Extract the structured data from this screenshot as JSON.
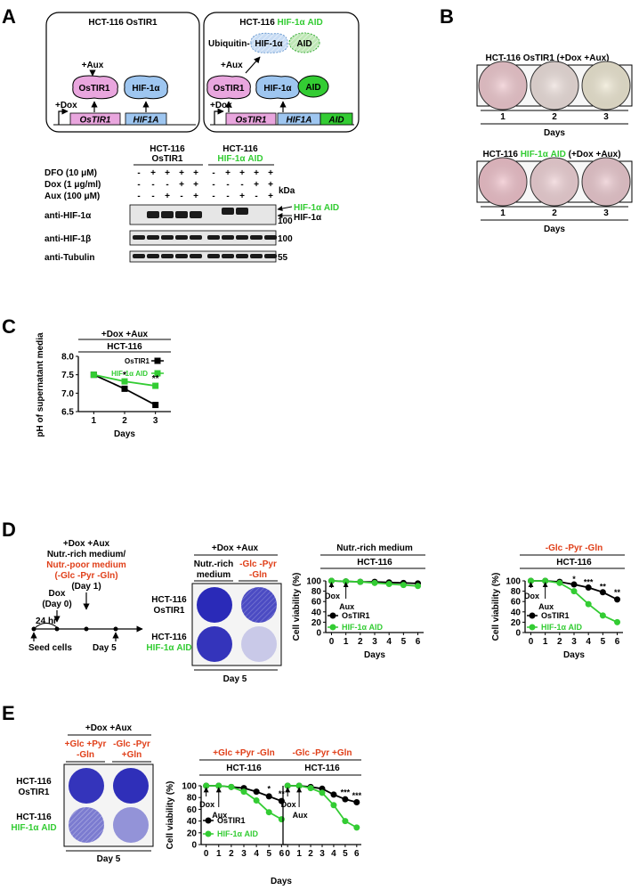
{
  "colors": {
    "green": "#33cc33",
    "red": "#e0401a",
    "blue_stain": "#2a2ab8",
    "pink": "#e8b8cc",
    "hif": "#a0c8f0",
    "black": "#000000"
  },
  "panel_letters": {
    "A": "A",
    "B": "B",
    "C": "C",
    "D": "D",
    "E": "E"
  },
  "panelA": {
    "box1": {
      "title": "HCT-116 OsTIR1",
      "aux": "+Aux",
      "dox": "+Dox",
      "ostir1": "OsTIR1",
      "hif": "HIF-1α",
      "gene1": "OsTIR1",
      "gene2": "HIF1A"
    },
    "box2": {
      "title_prefix": "HCT-116 ",
      "title_green": "HIF-1α AID",
      "ubiquitin": "Ubiquitin-",
      "hif_degraded": "HIF-1α",
      "aid_degraded": "AID",
      "aux": "+Aux",
      "dox": "+Dox",
      "ostir1": "OsTIR1",
      "hif": "HIF-1α",
      "aid": "AID",
      "gene1": "OsTIR1",
      "gene2": "HIF1A",
      "gene3": "AID"
    },
    "blot": {
      "group1_l1": "HCT-116",
      "group1_l2": "OsTIR1",
      "group2_l1": "HCT-116",
      "group2_l2": "HIF-1α AID",
      "conditions": [
        {
          "label": "DFO (10 μM)",
          "marks": [
            "-",
            "+",
            "+",
            "+",
            "+",
            "-",
            "+",
            "+",
            "+",
            "+"
          ]
        },
        {
          "label": "Dox (1 μg/ml)",
          "marks": [
            "-",
            "-",
            "-",
            "+",
            "+",
            "-",
            "-",
            "-",
            "+",
            "+"
          ]
        },
        {
          "label": "Aux (100 μM)",
          "marks": [
            "-",
            "-",
            "+",
            "-",
            "+",
            "-",
            "-",
            "+",
            "-",
            "+"
          ]
        }
      ],
      "kda": "kDa",
      "rows": [
        {
          "label": "anti-HIF-1α",
          "mw": "100"
        },
        {
          "label": "anti-HIF-1β",
          "mw": "100"
        },
        {
          "label": "anti-Tubulin",
          "mw": "55"
        }
      ],
      "band_label_aid": "HIF-1α AID",
      "band_label_hif": "HIF-1α"
    }
  },
  "panelB": {
    "top_title": "HCT-116 OsTIR1 (+Dox +Aux)",
    "bottom_prefix": "HCT-116 ",
    "bottom_green": "HIF-1α AID",
    "bottom_suffix": " (+Dox +Aux)",
    "days": [
      "1",
      "2",
      "3"
    ],
    "xlabel": "Days",
    "top_colors": [
      "#efc9cf",
      "#ede0dc",
      "#eee8d3"
    ],
    "bottom_colors": [
      "#efc2cb",
      "#efd2d6",
      "#ebc9cf"
    ]
  },
  "panelC": {
    "header1": "+Dox +Aux",
    "header2": "HCT-116",
    "chart_data": {
      "type": "line",
      "x": [
        1,
        2,
        3
      ],
      "ylim": [
        6.5,
        8.0
      ],
      "yticks": [
        "6.5",
        "7.0",
        "7.5",
        "8.0"
      ],
      "ylabel": "pH of supernatant media",
      "xlabel": "Days",
      "series": [
        {
          "name": "OsTIR1",
          "values": [
            7.5,
            7.12,
            6.68
          ],
          "err": [
            0.06,
            0.03,
            0.07
          ]
        },
        {
          "name": "HIF-1α AID",
          "values": [
            7.5,
            7.32,
            7.2
          ],
          "err": [
            0.06,
            0.03,
            0.05
          ]
        }
      ],
      "annotations": [
        "*",
        "**"
      ]
    }
  },
  "panelD": {
    "timeline": {
      "top1": "+Dox +Aux",
      "top2": "Nutr.-rich medium/",
      "top3": "Nutr.-poor medium",
      "top4": "(-Glc -Pyr -Gln)",
      "top5": "(Day 1)",
      "dox1": "Dox",
      "dox2": "(Day 0)",
      "hr": "24 hr",
      "seed": "Seed cells",
      "day5": "Day  5"
    },
    "stain": {
      "header": "+Dox +Aux",
      "col1_l1": "Nutr.-rich",
      "col1_l2": "medium",
      "col2_l1": "-Glc -Pyr",
      "col2_l2": "-Gln",
      "row1_l1": "HCT-116",
      "row1_l2": "OsTIR1",
      "row2_l1": "HCT-116",
      "row2_l2": "HIF-1α AID",
      "footer": "Day 5"
    },
    "chart_data": [
      {
        "type": "line",
        "header1": "Nutr.-rich medium",
        "header2": "HCT-116",
        "x": [
          0,
          1,
          2,
          3,
          4,
          5,
          6
        ],
        "ylim": [
          0,
          100
        ],
        "yticks": [
          "0",
          "20",
          "40",
          "60",
          "80",
          "100"
        ],
        "ylabel": "Cell viability (%)",
        "xlabel": "Days",
        "arrows": [
          "Dox",
          "Aux"
        ],
        "series": [
          {
            "name": "OsTIR1",
            "values": [
              100,
              99,
              98,
              98,
              97,
              96,
              95
            ]
          },
          {
            "name": "HIF-1α AID",
            "values": [
              100,
              99,
              98,
              96,
              94,
              92,
              90
            ]
          }
        ],
        "annotations": []
      },
      {
        "type": "line",
        "header1": "-Glc -Pyr -Gln",
        "header2": "HCT-116",
        "x": [
          0,
          1,
          2,
          3,
          4,
          5,
          6
        ],
        "ylim": [
          0,
          100
        ],
        "yticks": [
          "0",
          "20",
          "40",
          "60",
          "80",
          "100"
        ],
        "ylabel": "Cell viability (%)",
        "xlabel": "Days",
        "arrows": [
          "Dox",
          "Aux"
        ],
        "series": [
          {
            "name": "OsTIR1",
            "values": [
              100,
              100,
              98,
              93,
              87,
              78,
              64
            ]
          },
          {
            "name": "HIF-1α AID",
            "values": [
              100,
              100,
              96,
              80,
              55,
              33,
              20
            ]
          }
        ],
        "annotations": [
          "*",
          "***",
          "**",
          "**"
        ]
      }
    ]
  },
  "panelE": {
    "stain": {
      "header": "+Dox +Aux",
      "col1_l1": "+Glc +Pyr",
      "col1_l2": "-Gln",
      "col2_l1": "-Glc -Pyr",
      "col2_l2": "+Gln",
      "row1_l1": "HCT-116",
      "row1_l2": "OsTIR1",
      "row2_l1": "HCT-116",
      "row2_l2": "HIF-1α AID",
      "footer": "Day 5"
    },
    "chart_data": {
      "type": "line",
      "ylabel": "Cell viability (%)",
      "xlabel": "Days",
      "ylim": [
        0,
        100
      ],
      "yticks": [
        "0",
        "20",
        "40",
        "60",
        "80",
        "100"
      ],
      "legend": [
        "OsTIR1",
        "HIF-1α AID"
      ],
      "arrows": [
        "Dox",
        "Aux"
      ],
      "subplots": [
        {
          "header1": "+Glc +Pyr -Gln",
          "header2": "HCT-116",
          "x": [
            0,
            1,
            2,
            3,
            4,
            5,
            6
          ],
          "series": [
            {
              "name": "OsTIR1",
              "values": [
                100,
                100,
                98,
                96,
                90,
                82,
                74
              ]
            },
            {
              "name": "HIF-1α AID",
              "values": [
                100,
                100,
                98,
                90,
                75,
                55,
                43
              ]
            }
          ],
          "annotations": [
            "*",
            "**"
          ]
        },
        {
          "header1": "-Glc -Pyr +Gln",
          "header2": "HCT-116",
          "x": [
            0,
            1,
            2,
            3,
            4,
            5,
            6
          ],
          "series": [
            {
              "name": "OsTIR1",
              "values": [
                100,
                100,
                98,
                95,
                85,
                77,
                72
              ]
            },
            {
              "name": "HIF-1α AID",
              "values": [
                100,
                100,
                96,
                88,
                67,
                40,
                29
              ]
            }
          ],
          "annotations": [
            "***",
            "***"
          ]
        }
      ]
    }
  }
}
